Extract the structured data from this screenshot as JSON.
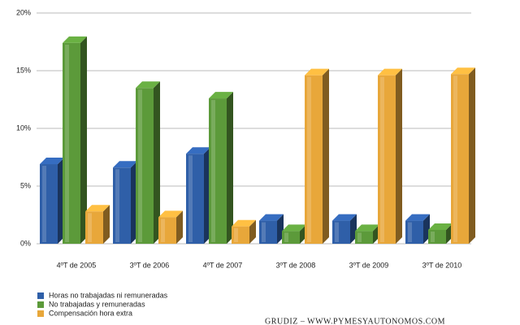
{
  "chart_data": {
    "type": "bar",
    "categories": [
      "4ºT de 2005",
      "3ºT de 2006",
      "4ºT de 2007",
      "3ºT de 2008",
      "3ºT de 2009",
      "3ºT de 2010"
    ],
    "series": [
      {
        "name": "Horas no trabajadas ni remuneradas",
        "color": "#2f5fa8",
        "values": [
          6.9,
          6.6,
          7.8,
          2.0,
          2.0,
          2.0
        ]
      },
      {
        "name": "No trabajadas y remuneradas",
        "color": "#5c9a3a",
        "values": [
          17.4,
          13.5,
          12.6,
          1.1,
          1.1,
          1.2
        ]
      },
      {
        "name": "Compensación hora extra",
        "color": "#e8a73a",
        "values": [
          2.8,
          2.3,
          1.5,
          14.6,
          14.6,
          14.7
        ]
      }
    ],
    "ylim": [
      0,
      20
    ],
    "yticks": [
      {
        "value": 0,
        "label": "0%"
      },
      {
        "value": 5,
        "label": "5%"
      },
      {
        "value": 10,
        "label": "10%"
      },
      {
        "value": 15,
        "label": "15%"
      },
      {
        "value": 20,
        "label": "20%"
      }
    ],
    "grid": true,
    "footer": "GRUDIZ – WWW.PYMESYAUTONOMOS.COM"
  }
}
